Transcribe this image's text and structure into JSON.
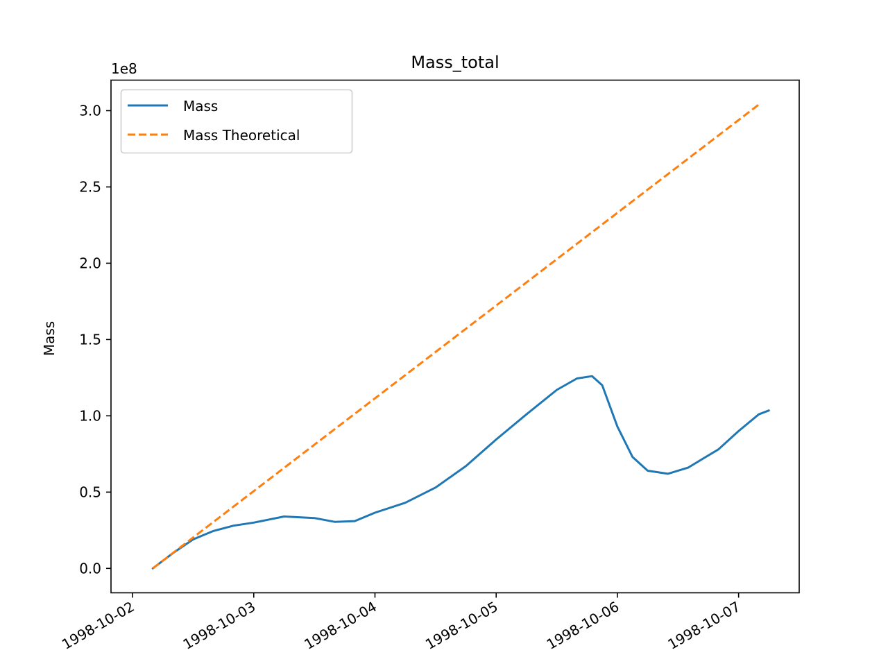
{
  "chart_data": {
    "type": "line",
    "title": "Mass_total",
    "xlabel": "",
    "ylabel": "Mass",
    "y_offset_label": "1e8",
    "y_scale": 100000000,
    "x_type": "date",
    "xlim": [
      "1998-10-01T19:44",
      "1998-10-07T12:00"
    ],
    "ylim": [
      -0.16,
      3.2
    ],
    "x_ticks": [
      "1998-10-02",
      "1998-10-03",
      "1998-10-04",
      "1998-10-05",
      "1998-10-06",
      "1998-10-07"
    ],
    "y_ticks": [
      "0.0",
      "0.5",
      "1.0",
      "1.5",
      "2.0",
      "2.5",
      "3.0"
    ],
    "y_tick_values": [
      0.0,
      0.5,
      1.0,
      1.5,
      2.0,
      2.5,
      3.0
    ],
    "grid": false,
    "legend_position": "upper-left",
    "series": [
      {
        "name": "Mass",
        "color": "#1f77b4",
        "style": "solid",
        "points": [
          [
            "1998-10-02T04:00",
            0.0
          ],
          [
            "1998-10-02T08:00",
            0.1
          ],
          [
            "1998-10-02T12:00",
            0.19
          ],
          [
            "1998-10-02T16:00",
            0.245
          ],
          [
            "1998-10-02T20:00",
            0.28
          ],
          [
            "1998-10-03T00:00",
            0.3
          ],
          [
            "1998-10-03T06:00",
            0.34
          ],
          [
            "1998-10-03T12:00",
            0.33
          ],
          [
            "1998-10-03T16:00",
            0.305
          ],
          [
            "1998-10-03T20:00",
            0.31
          ],
          [
            "1998-10-04T00:00",
            0.365
          ],
          [
            "1998-10-04T06:00",
            0.43
          ],
          [
            "1998-10-04T12:00",
            0.53
          ],
          [
            "1998-10-04T18:00",
            0.67
          ],
          [
            "1998-10-05T00:00",
            0.845
          ],
          [
            "1998-10-05T06:00",
            1.01
          ],
          [
            "1998-10-05T12:00",
            1.17
          ],
          [
            "1998-10-05T16:00",
            1.245
          ],
          [
            "1998-10-05T19:00",
            1.26
          ],
          [
            "1998-10-05T21:00",
            1.2
          ],
          [
            "1998-10-06T00:00",
            0.93
          ],
          [
            "1998-10-06T03:00",
            0.73
          ],
          [
            "1998-10-06T06:00",
            0.64
          ],
          [
            "1998-10-06T10:00",
            0.62
          ],
          [
            "1998-10-06T14:00",
            0.66
          ],
          [
            "1998-10-06T20:00",
            0.78
          ],
          [
            "1998-10-07T00:00",
            0.9
          ],
          [
            "1998-10-07T04:00",
            1.01
          ],
          [
            "1998-10-07T06:00",
            1.035
          ]
        ]
      },
      {
        "name": "Mass Theoretical",
        "color": "#ff7f0e",
        "style": "dashed",
        "points": [
          [
            "1998-10-02T04:00",
            0.0
          ],
          [
            "1998-10-07T04:00",
            3.04
          ]
        ]
      }
    ]
  }
}
